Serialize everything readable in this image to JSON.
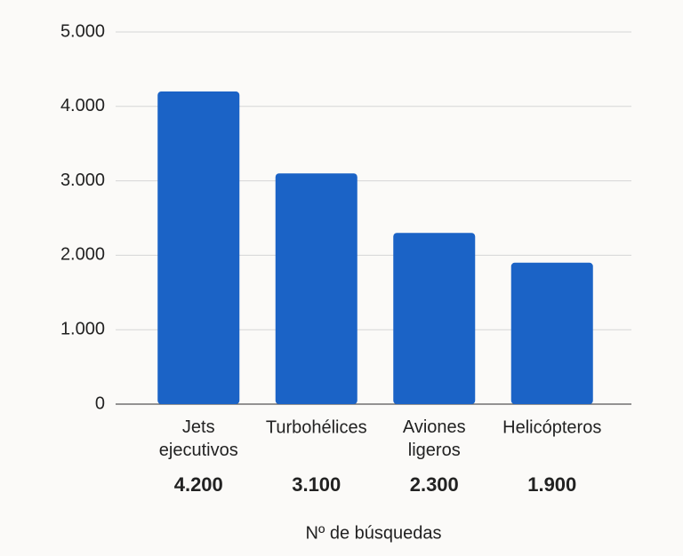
{
  "chart_data": {
    "type": "bar",
    "categories": [
      "Jets ejecutivos",
      "Turbohélices",
      "Aviones ligeros",
      "Helicópteros"
    ],
    "values": [
      4200,
      3100,
      2300,
      1900
    ],
    "value_labels": [
      "4.200",
      "3.100",
      "2.300",
      "1.900"
    ],
    "color": "#1b63c6",
    "ylim": [
      0,
      5000
    ],
    "yticks": [
      0,
      {
        "value": 1000,
        "label": "1.000"
      },
      {
        "value": 2000,
        "label": "2.000"
      },
      {
        "value": 3000,
        "label": "3.000"
      },
      {
        "value": 4000,
        "label": "4.000"
      },
      {
        "value": 5000,
        "label": "5.000"
      }
    ],
    "grid": true,
    "x_label": "Nº de búsquedas"
  }
}
